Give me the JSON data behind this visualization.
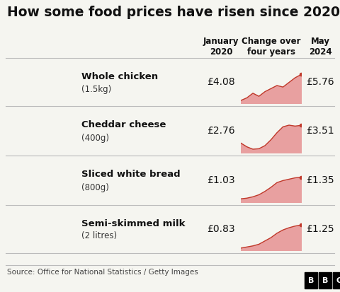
{
  "title": "How some food prices have risen since 2020",
  "col_header_jan": "January\n2020",
  "col_header_change": "Change over\nfour years",
  "col_header_may": "May\n2024",
  "source": "Source: Office for National Statistics / Getty Images",
  "background_color": "#f5f5f0",
  "row_sep_color": "#bbbbbb",
  "items": [
    {
      "name": "Whole chicken",
      "weight": "(1.5kg)",
      "jan_price": "£4.08",
      "may_price": "£5.76",
      "chart_data": [
        4.08,
        4.25,
        4.55,
        4.35,
        4.65,
        4.85,
        5.05,
        4.95,
        5.25,
        5.55,
        5.76
      ],
      "chart_min": 3.9,
      "chart_max": 5.9
    },
    {
      "name": "Cheddar cheese",
      "weight": "(400g)",
      "jan_price": "£2.76",
      "may_price": "£3.51",
      "chart_data": [
        2.76,
        2.6,
        2.5,
        2.52,
        2.65,
        2.9,
        3.2,
        3.45,
        3.52,
        3.48,
        3.51
      ],
      "chart_min": 2.35,
      "chart_max": 3.7
    },
    {
      "name": "Sliced white bread",
      "weight": "(800g)",
      "jan_price": "£1.03",
      "may_price": "£1.35",
      "chart_data": [
        1.03,
        1.04,
        1.06,
        1.09,
        1.14,
        1.2,
        1.27,
        1.3,
        1.32,
        1.34,
        1.35
      ],
      "chart_min": 0.98,
      "chart_max": 1.45
    },
    {
      "name": "Semi-skimmed milk",
      "weight": "(2 litres)",
      "jan_price": "£0.83",
      "may_price": "£1.25",
      "chart_data": [
        0.83,
        0.85,
        0.87,
        0.9,
        0.96,
        1.02,
        1.1,
        1.16,
        1.2,
        1.23,
        1.25
      ],
      "chart_min": 0.79,
      "chart_max": 1.35
    }
  ],
  "fill_color": "#e8a0a0",
  "line_color": "#c0392b",
  "dot_color": "#c0392b",
  "title_fontsize": 13.5,
  "header_fontsize": 8.5,
  "item_name_fontsize": 9.5,
  "price_fontsize": 10,
  "source_fontsize": 7.5,
  "bbc_fontsize": 8
}
